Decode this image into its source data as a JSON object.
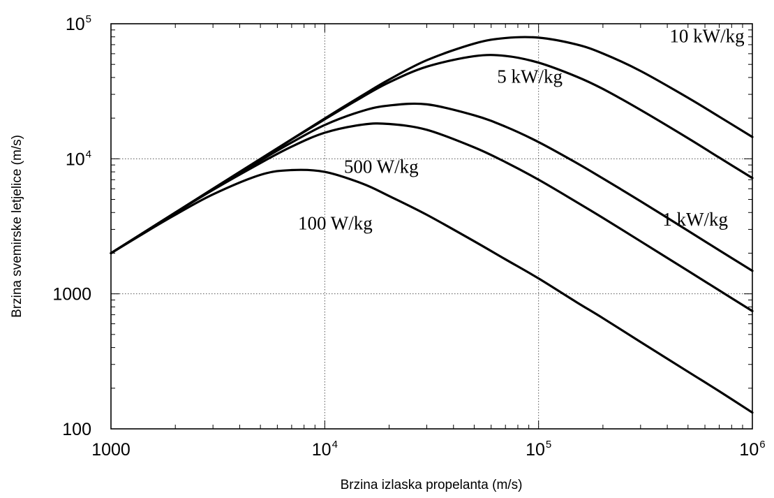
{
  "chart_data": {
    "type": "line",
    "title": "",
    "xlabel": "Brzina izlaska propelanta (m/s)",
    "ylabel": "Brzina svemirske letjelice (m/s)",
    "xscale": "log",
    "yscale": "log",
    "xlim": [
      1000,
      1000000
    ],
    "ylim": [
      100,
      100000
    ],
    "grid": "major, dotted",
    "x_ticks": [
      {
        "base": "1000",
        "exp": ""
      },
      {
        "base": "10",
        "exp": "4"
      },
      {
        "base": "10",
        "exp": "5"
      },
      {
        "base": "10",
        "exp": "6"
      }
    ],
    "y_ticks": [
      {
        "base": "100",
        "exp": ""
      },
      {
        "base": "1000",
        "exp": ""
      },
      {
        "base": "10",
        "exp": "4"
      },
      {
        "base": "10",
        "exp": "5"
      }
    ],
    "x": [
      1000,
      1500,
      2000,
      3000,
      5000,
      7000,
      10000,
      15000,
      20000,
      30000,
      50000,
      70000,
      100000,
      150000,
      200000,
      300000,
      500000,
      700000,
      1000000
    ],
    "series": [
      {
        "label": "100 W/kg",
        "values": [
          2000,
          2950,
          3850,
          5450,
          7600,
          8250,
          8000,
          6550,
          5300,
          3850,
          2450,
          1800,
          1300,
          870,
          660,
          440,
          265,
          190,
          132
        ]
      },
      {
        "label": "500 W/kg",
        "values": [
          2000,
          3000,
          3980,
          5880,
          9300,
          12300,
          15600,
          17900,
          18100,
          16400,
          12150,
          9450,
          7000,
          4800,
          3650,
          2450,
          1480,
          1060,
          745
        ]
      },
      {
        "label": "1 kW/kg",
        "values": [
          2000,
          3000,
          3990,
          5950,
          9700,
          13200,
          17800,
          22600,
          24800,
          25300,
          21000,
          17300,
          13300,
          9350,
          7150,
          4850,
          2930,
          2100,
          1480
        ]
      },
      {
        "label": "5 kW/kg",
        "values": [
          2000,
          3000,
          4000,
          6000,
          9950,
          13900,
          19600,
          28700,
          36800,
          48100,
          57500,
          57800,
          51500,
          40700,
          32900,
          23000,
          14200,
          10200,
          7200
        ]
      },
      {
        "label": "10 kW/kg",
        "values": [
          2000,
          3000,
          4000,
          6000,
          9980,
          13950,
          19900,
          29500,
          38600,
          53700,
          71300,
          78400,
          78900,
          70300,
          60200,
          44700,
          28300,
          20500,
          14500
        ]
      }
    ],
    "label_positions": [
      {
        "label": "100 W/kg",
        "x": 7500,
        "y": 3000
      },
      {
        "label": "500 W/kg",
        "x": 12300,
        "y": 7850
      },
      {
        "label": "1 kW/kg",
        "x": 380000,
        "y": 3200
      },
      {
        "label": "5 kW/kg",
        "x": 64000,
        "y": 36500
      },
      {
        "label": "10 kW/kg",
        "x": 410000,
        "y": 73000
      }
    ]
  }
}
